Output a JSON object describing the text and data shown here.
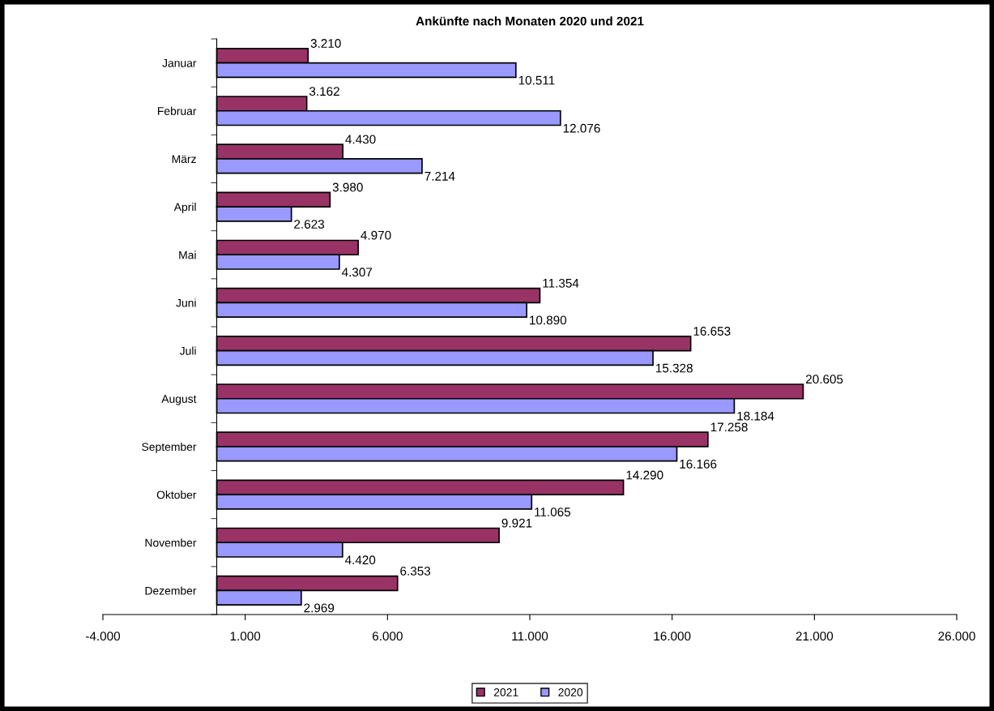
{
  "chart_data": {
    "type": "bar",
    "orientation": "horizontal",
    "title": "Ankünfte nach Monaten 2020 und 2021",
    "categories": [
      "Januar",
      "Februar",
      "März",
      "April",
      "Mai",
      "Juni",
      "Juli",
      "August",
      "September",
      "Oktober",
      "November",
      "Dezember"
    ],
    "series": [
      {
        "name": "2021",
        "color": "#993366",
        "values": [
          3210,
          3162,
          4430,
          3980,
          4970,
          11354,
          16653,
          20605,
          17258,
          14290,
          9921,
          6353
        ],
        "value_labels": [
          "3.210",
          "3.162",
          "4.430",
          "3.980",
          "4.970",
          "11.354",
          "16.653",
          "20.605",
          "17.258",
          "14.290",
          "9.921",
          "6.353"
        ]
      },
      {
        "name": "2020",
        "color": "#9999ff",
        "values": [
          10511,
          12076,
          7214,
          2623,
          4307,
          10890,
          15328,
          18184,
          16166,
          11065,
          4420,
          2969
        ],
        "value_labels": [
          "10.511",
          "12.076",
          "7.214",
          "2.623",
          "4.307",
          "10.890",
          "15.328",
          "18.184",
          "16.166",
          "11.065",
          "4.420",
          "2.969"
        ]
      }
    ],
    "xlim": [
      -4000,
      26000
    ],
    "xticks": [
      {
        "value": -4000,
        "label": "-4.000"
      },
      {
        "value": 1000,
        "label": "1.000"
      },
      {
        "value": 6000,
        "label": "6.000"
      },
      {
        "value": 11000,
        "label": "11.000"
      },
      {
        "value": 16000,
        "label": "16.000"
      },
      {
        "value": 21000,
        "label": "21.000"
      },
      {
        "value": 26000,
        "label": "26.000"
      }
    ],
    "grid": false,
    "legend": "bottom"
  }
}
